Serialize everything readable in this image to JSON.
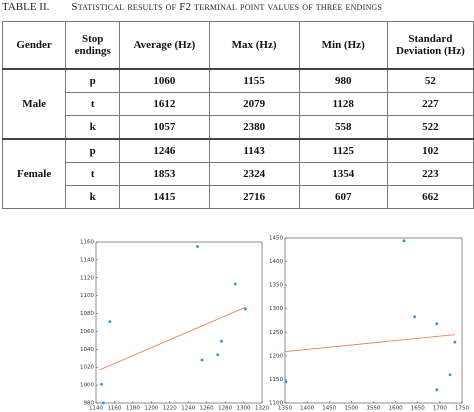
{
  "caption": {
    "label": "TABLE II.",
    "title": "Statistical results of F2 terminal point values of three endings"
  },
  "table": {
    "headers": [
      "Gender",
      "Stop endings",
      "Average (Hz)",
      "Max (Hz)",
      "Min (Hz)",
      "Standard Deviation (Hz)"
    ],
    "groups": [
      {
        "gender": "Male",
        "rows": [
          [
            "p",
            1060,
            1155,
            980,
            52
          ],
          [
            "t",
            1612,
            2079,
            1128,
            227
          ],
          [
            "k",
            1057,
            2380,
            558,
            522
          ]
        ]
      },
      {
        "gender": "Female",
        "rows": [
          [
            "p",
            1246,
            1143,
            1125,
            102
          ],
          [
            "t",
            1853,
            2324,
            1354,
            223
          ],
          [
            "k",
            1415,
            2716,
            607,
            662
          ]
        ]
      }
    ]
  },
  "chart_data": [
    {
      "type": "scatter",
      "xlim": [
        1140,
        1320
      ],
      "ylim": [
        980,
        1160
      ],
      "xticks": [
        1140,
        1160,
        1180,
        1200,
        1220,
        1240,
        1260,
        1280,
        1300,
        1320
      ],
      "yticks": [
        980,
        1000,
        1020,
        1040,
        1060,
        1080,
        1100,
        1120,
        1140,
        1160
      ],
      "series": [
        {
          "mode": "markers",
          "color": "#2f8fd8",
          "x": [
            1148,
            1146,
            1155,
            1250,
            1255,
            1272,
            1276,
            1291,
            1302
          ],
          "values": [
            980,
            1001,
            1071,
            1155,
            1028,
            1034,
            1049,
            1113,
            1085
          ]
        },
        {
          "mode": "line",
          "color": "#e8743b",
          "x": [
            1144,
            1302
          ],
          "values": [
            1017,
            1087
          ]
        }
      ]
    },
    {
      "type": "scatter",
      "xlim": [
        1350,
        1750
      ],
      "ylim": [
        1100,
        1450
      ],
      "xticks": [
        1350,
        1400,
        1450,
        1500,
        1550,
        1600,
        1650,
        1700,
        1750
      ],
      "yticks": [
        1100,
        1150,
        1200,
        1250,
        1300,
        1350,
        1400,
        1450
      ],
      "series": [
        {
          "mode": "markers",
          "color": "#2f8fd8",
          "x": [
            1352,
            1619,
            1643,
            1693,
            1693,
            1723,
            1734
          ],
          "values": [
            1145,
            1444,
            1283,
            1268,
            1128,
            1160,
            1229
          ]
        },
        {
          "mode": "line",
          "color": "#e8743b",
          "x": [
            1350,
            1734
          ],
          "values": [
            1209,
            1245
          ]
        }
      ]
    }
  ]
}
